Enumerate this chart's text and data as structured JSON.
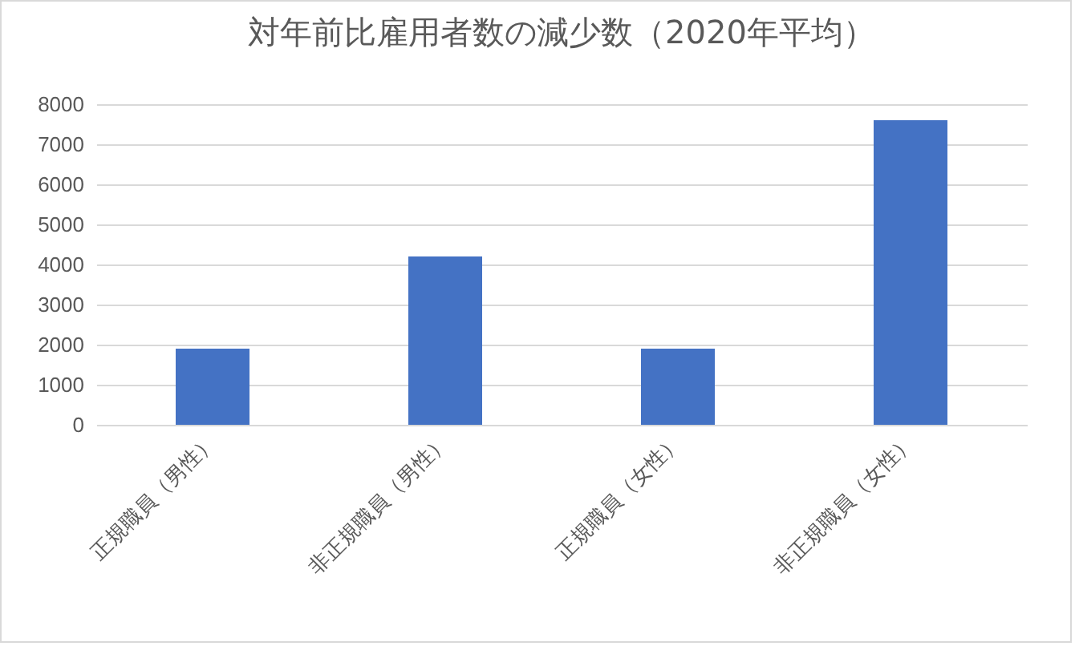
{
  "chart_data": {
    "type": "bar",
    "title": "対年前比雇用者数の減少数（2020年平均）",
    "categories": [
      "正規職員（男性）",
      "非正規職員（男性）",
      "正規職員（女性）",
      "非正規職員（女性）"
    ],
    "values": [
      1900,
      4200,
      1900,
      7600
    ],
    "color": "#4472c4",
    "ylim": [
      0,
      8000
    ],
    "yticks": [
      0,
      1000,
      2000,
      3000,
      4000,
      5000,
      6000,
      7000,
      8000
    ],
    "grid": "y"
  }
}
